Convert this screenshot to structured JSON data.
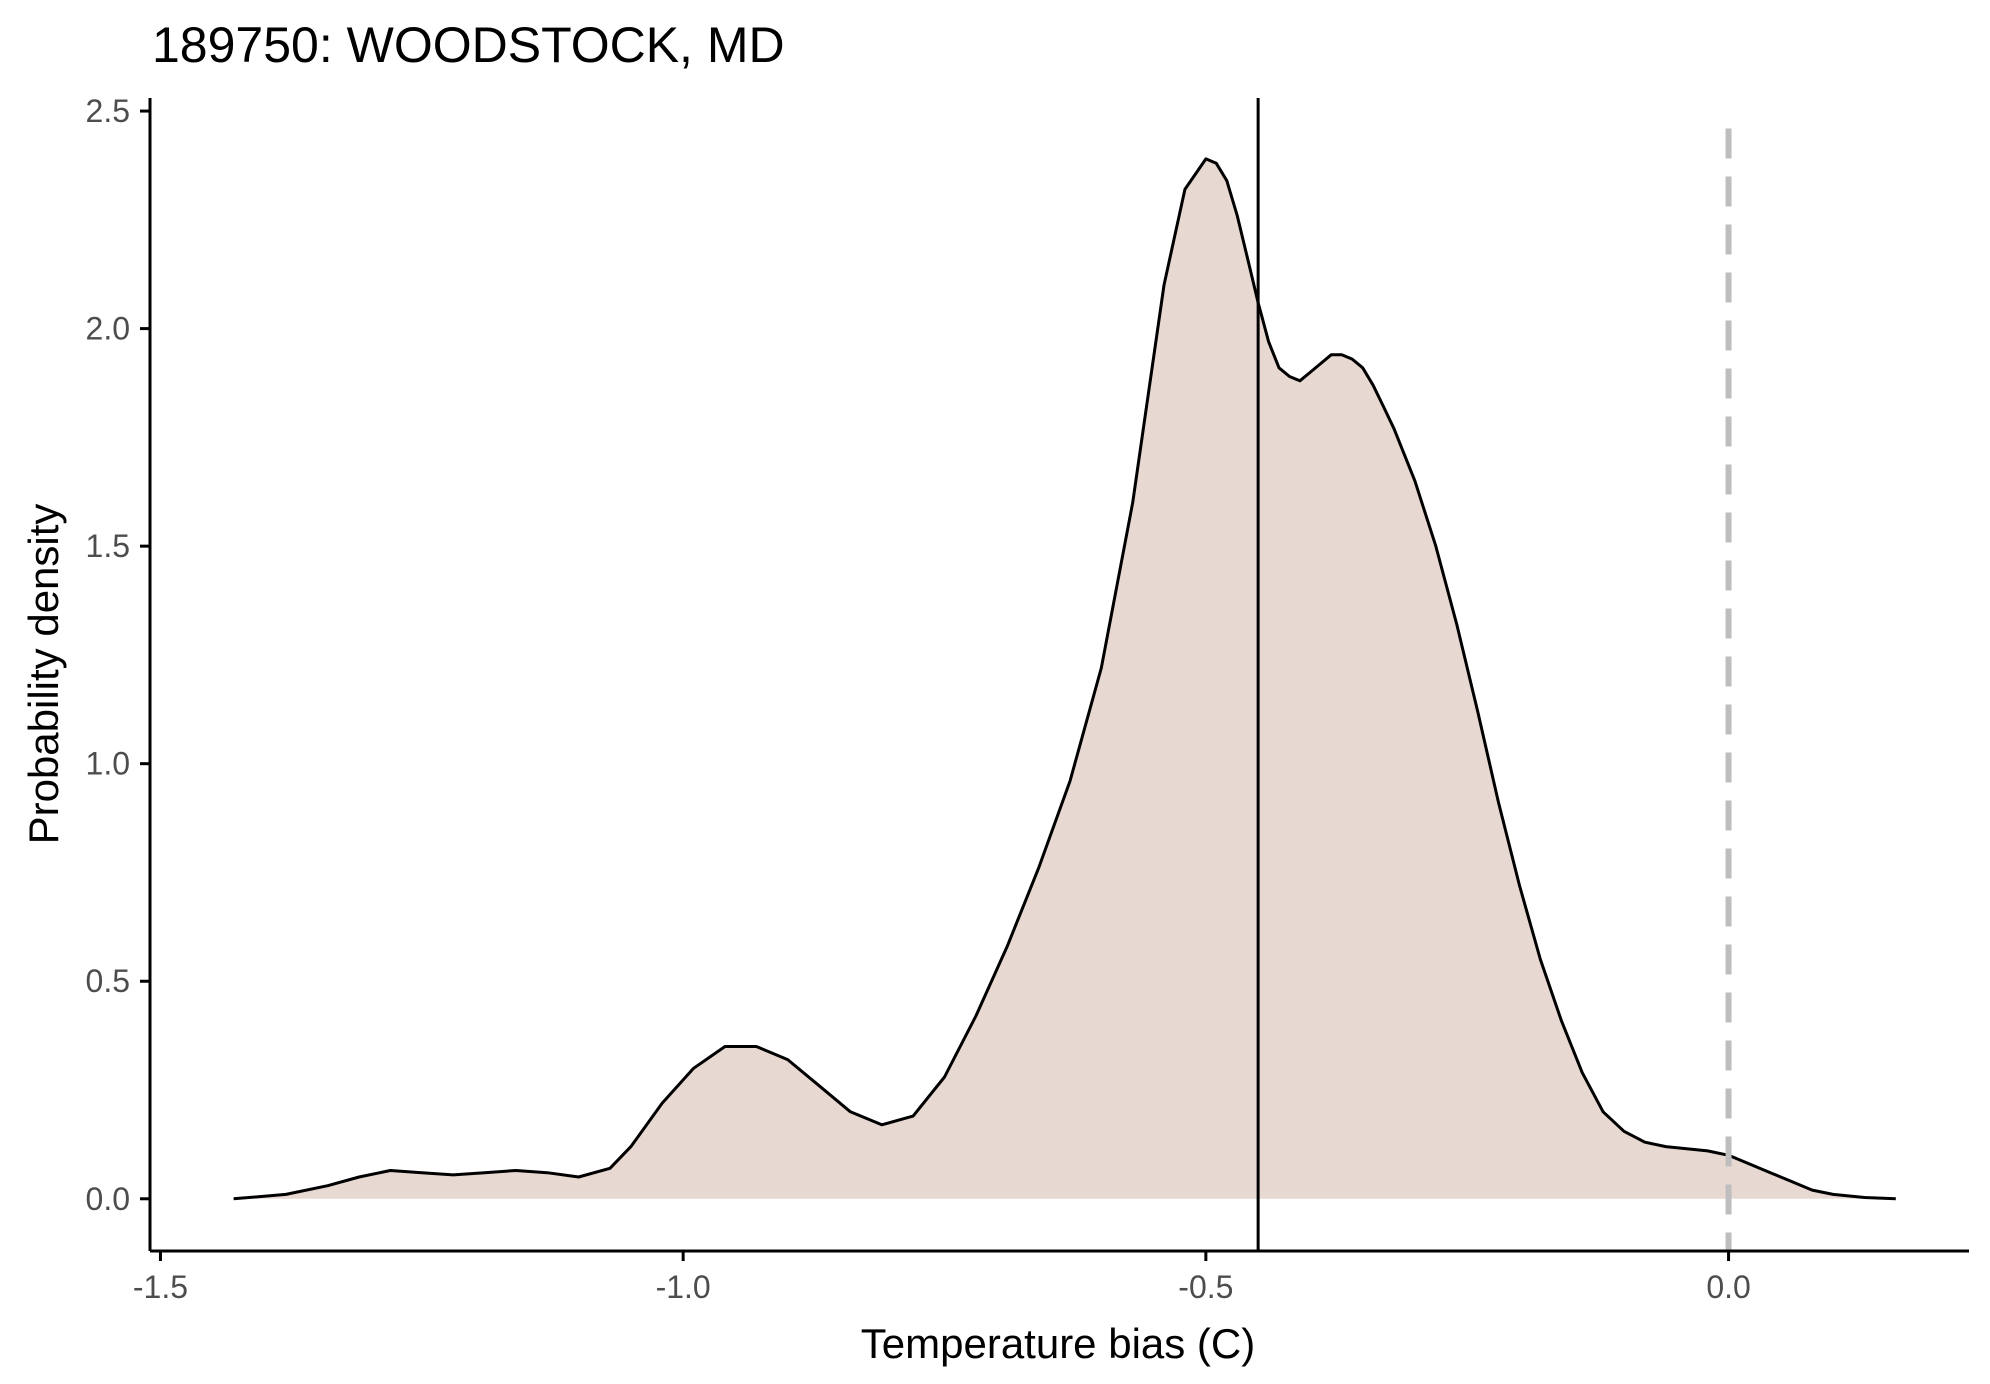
{
  "chart_data": {
    "type": "area",
    "title": "189750: WOODSTOCK, MD",
    "xlabel": "Temperature bias (C)",
    "ylabel": "Probability density",
    "xlim": [
      -1.51,
      0.23
    ],
    "ylim": [
      -0.12,
      2.53
    ],
    "x_ticks": [
      -1.5,
      -1.0,
      -0.5,
      0.0
    ],
    "x_tick_labels": [
      "-1.5",
      "-1.0",
      "-0.5",
      "0.0"
    ],
    "y_ticks": [
      0.0,
      0.5,
      1.0,
      1.5,
      2.0,
      2.5
    ],
    "y_tick_labels": [
      "0.0",
      "0.5",
      "1.0",
      "1.5",
      "2.0",
      "2.5"
    ],
    "grid": false,
    "legend": "none",
    "density": {
      "x": [
        -1.43,
        -1.38,
        -1.34,
        -1.31,
        -1.28,
        -1.25,
        -1.22,
        -1.19,
        -1.16,
        -1.13,
        -1.1,
        -1.07,
        -1.05,
        -1.02,
        -0.99,
        -0.96,
        -0.93,
        -0.9,
        -0.87,
        -0.84,
        -0.81,
        -0.78,
        -0.75,
        -0.72,
        -0.69,
        -0.66,
        -0.63,
        -0.6,
        -0.57,
        -0.54,
        -0.52,
        -0.5,
        -0.49,
        -0.48,
        -0.47,
        -0.46,
        -0.45,
        -0.44,
        -0.43,
        -0.42,
        -0.41,
        -0.4,
        -0.39,
        -0.38,
        -0.37,
        -0.36,
        -0.35,
        -0.34,
        -0.33,
        -0.32,
        -0.3,
        -0.28,
        -0.26,
        -0.24,
        -0.22,
        -0.2,
        -0.18,
        -0.16,
        -0.14,
        -0.12,
        -0.1,
        -0.08,
        -0.06,
        -0.04,
        -0.02,
        0.0,
        0.02,
        0.04,
        0.06,
        0.08,
        0.1,
        0.13,
        0.16
      ],
      "y": [
        0.0,
        0.01,
        0.03,
        0.05,
        0.065,
        0.06,
        0.055,
        0.06,
        0.065,
        0.06,
        0.05,
        0.07,
        0.12,
        0.22,
        0.3,
        0.35,
        0.35,
        0.32,
        0.26,
        0.2,
        0.17,
        0.19,
        0.28,
        0.42,
        0.58,
        0.76,
        0.96,
        1.22,
        1.6,
        2.1,
        2.32,
        2.39,
        2.38,
        2.34,
        2.26,
        2.16,
        2.06,
        1.97,
        1.91,
        1.89,
        1.88,
        1.9,
        1.92,
        1.94,
        1.94,
        1.93,
        1.91,
        1.87,
        1.82,
        1.77,
        1.65,
        1.5,
        1.32,
        1.12,
        0.91,
        0.72,
        0.55,
        0.41,
        0.29,
        0.2,
        0.155,
        0.13,
        0.12,
        0.115,
        0.11,
        0.1,
        0.08,
        0.06,
        0.04,
        0.02,
        0.01,
        0.003,
        0.0
      ],
      "fill_color": "#e8d8d2",
      "line_color": "#000000"
    },
    "reference_lines": [
      {
        "x": -0.45,
        "style": "solid",
        "color": "#000000"
      },
      {
        "x": 0.0,
        "style": "dashed",
        "color": "#bebebe"
      }
    ]
  }
}
